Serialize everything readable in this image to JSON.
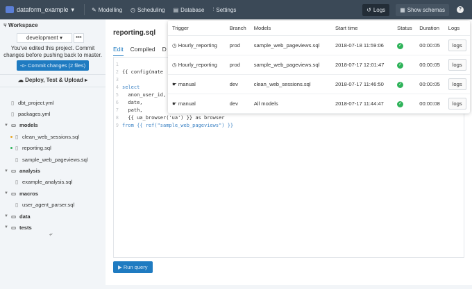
{
  "topbar": {
    "project": "dataform_example",
    "nav": [
      "Modelling",
      "Scheduling",
      "Database",
      "Settings"
    ],
    "logs": "Logs",
    "show_schemas": "Show schemas",
    "help": "?"
  },
  "sidebar": {
    "workspace": "Workspace",
    "branch": "development",
    "more": "•••",
    "message": "You've edited this project. Commit changes before pushing back to master.",
    "commit": "Commit changes (2 files)",
    "deploy": "Deploy, Test & Upload",
    "tree": [
      {
        "label": "dbt_project.yml",
        "type": "file",
        "indent": 1
      },
      {
        "label": "packages.yml",
        "type": "file",
        "indent": 1
      },
      {
        "label": "models",
        "type": "folder"
      },
      {
        "label": "clean_web_sessions.sql",
        "type": "file",
        "indent": 2,
        "status": "#e8a82a"
      },
      {
        "label": "reporting.sql",
        "type": "file",
        "indent": 2,
        "status": "#2fb35a"
      },
      {
        "label": "sample_web_pageviews.sql",
        "type": "file",
        "indent": 2
      },
      {
        "label": "analysis",
        "type": "folder"
      },
      {
        "label": "example_analysis.sql",
        "type": "file",
        "indent": 2
      },
      {
        "label": "macros",
        "type": "folder"
      },
      {
        "label": "user_agent_parser.sql",
        "type": "file",
        "indent": 2
      },
      {
        "label": "data",
        "type": "folder"
      },
      {
        "label": "tests",
        "type": "folder"
      }
    ]
  },
  "editor": {
    "title": "reporting.sql",
    "tabs": [
      "Edit",
      "Compiled",
      "D"
    ],
    "run": "Run query",
    "lines": [
      [
        "1",
        ""
      ],
      [
        "2",
        "{{ config(mate"
      ],
      [
        "3",
        ""
      ],
      [
        "4",
        "select"
      ],
      [
        "5",
        "  anon_user_id,"
      ],
      [
        "6",
        "  date,"
      ],
      [
        "7",
        "  path,"
      ],
      [
        "8",
        "  {{ ua_browser('ua') }} as browser"
      ],
      [
        "9",
        "from {{ ref(\"sample_web_pageviews\") }}"
      ]
    ]
  },
  "logs": {
    "headers": [
      "Trigger",
      "Branch",
      "Models",
      "Start time",
      "Status",
      "Duration",
      "Logs"
    ],
    "rows": [
      {
        "trigger": "Hourly_reporting",
        "icon": "clock",
        "branch": "prod",
        "models": "sample_web_pageviews.sql",
        "start": "2018-07-18 11:59:06",
        "status": "success",
        "duration": "00:00:05",
        "logs": "logs"
      },
      {
        "trigger": "Hourly_reporting",
        "icon": "clock",
        "branch": "prod",
        "models": "sample_web_pageviews.sql",
        "start": "2018-07-17 12:01:47",
        "status": "success",
        "duration": "00:00:05",
        "logs": "logs"
      },
      {
        "trigger": "manual",
        "icon": "hand",
        "branch": "dev",
        "models": "clean_web_sessions.sql",
        "start": "2018-07-17 11:46:50",
        "status": "success",
        "duration": "00:00:05",
        "logs": "logs"
      },
      {
        "trigger": "manual",
        "icon": "hand",
        "branch": "dev",
        "models": "All models",
        "start": "2018-07-17 11:44:47",
        "status": "success",
        "duration": "00:00:08",
        "logs": "logs"
      }
    ]
  },
  "colors": {
    "topbar": "#3b4957",
    "accent": "#1f7bc1",
    "success": "#2fb35a"
  }
}
